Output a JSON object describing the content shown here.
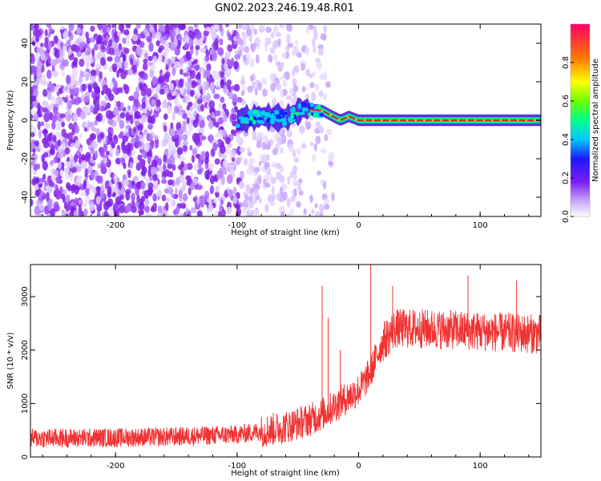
{
  "title": "GN02.2023.246.19.48.R01",
  "colors": {
    "snr_line": "#f03232",
    "noise": "#8a2be2",
    "axes": "#000000"
  },
  "chart_data": [
    {
      "type": "heatmap",
      "xlabel": "Height of straight line (km)",
      "ylabel": "Frequency (Hz)",
      "xlim": [
        -270,
        150
      ],
      "ylim": [
        -50,
        50
      ],
      "x_ticks": [
        "-200",
        "-100",
        "0",
        "100"
      ],
      "y_ticks": [
        "-40",
        "-20",
        "0",
        "20",
        "40"
      ],
      "grid": false,
      "colorbar": {
        "label": "Normalized spectral amplitude",
        "range": [
          0,
          1
        ],
        "ticks": [
          "0.0",
          "0.2",
          "0.4",
          "0.6",
          "0.8"
        ],
        "colormap": "rainbow"
      },
      "features": {
        "broadband_noise_x": [
          -270,
          -40
        ],
        "signal_onset_x": -100,
        "signal_center_frequency_hz": [
          {
            "x": -100,
            "y": 0
          },
          {
            "x": -80,
            "y": 2
          },
          {
            "x": -60,
            "y": 1
          },
          {
            "x": -45,
            "y": 6
          },
          {
            "x": -30,
            "y": 5
          },
          {
            "x": -15,
            "y": 0
          },
          {
            "x": -8,
            "y": 2
          },
          {
            "x": 0,
            "y": 0
          },
          {
            "x": 150,
            "y": 0
          }
        ]
      }
    },
    {
      "type": "line",
      "xlabel": "Height of straight line (km)",
      "ylabel": "SNR (10 * v/v)",
      "xlim": [
        -270,
        150
      ],
      "ylim": [
        0,
        3600
      ],
      "x_ticks": [
        "-200",
        "-100",
        "0",
        "100"
      ],
      "y_ticks": [
        "0",
        "1000",
        "2000",
        "3000"
      ],
      "grid": false,
      "series": [
        {
          "x": [
            -270,
            -200,
            -150,
            -100,
            -80,
            -60,
            -40,
            -30,
            -20,
            -10,
            0,
            5,
            10,
            15,
            20,
            30,
            50,
            75,
            100,
            125,
            150
          ],
          "y": [
            350,
            360,
            380,
            420,
            480,
            560,
            700,
            800,
            950,
            1100,
            1250,
            1400,
            1600,
            1900,
            2150,
            2400,
            2400,
            2380,
            2350,
            2320,
            2300
          ]
        }
      ],
      "spikes": [
        {
          "x": -30,
          "y": 3200
        },
        {
          "x": -25,
          "y": 2600
        },
        {
          "x": -15,
          "y": 2000
        },
        {
          "x": 10,
          "y": 3600
        },
        {
          "x": 28,
          "y": 3200
        },
        {
          "x": 90,
          "y": 3400
        },
        {
          "x": 130,
          "y": 3300
        }
      ]
    }
  ]
}
